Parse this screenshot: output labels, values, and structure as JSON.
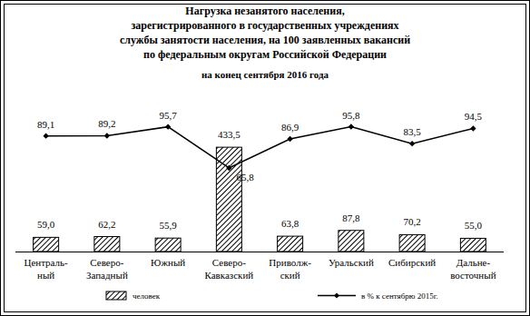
{
  "chart_data": {
    "type": "bar",
    "title": "Нагрузка незанятого населения,\nзарегистрированного в государственных учреждениях\nслужбы занятости населения, на 100 заявленных вакансий\nпо федеральным округам Российской Федерации",
    "subtitle": "на конец сентября 2016 года",
    "categories": [
      "Централь-\nный",
      "Северо-\nЗападный",
      "Южный",
      "Северо-\nКавказский",
      "Приволж-\nский",
      "Уральский",
      "Сибирский",
      "Дальне-\nвосточный"
    ],
    "series": [
      {
        "name": "человек",
        "type": "bar",
        "color": "#000000",
        "values": [
          59.0,
          62.2,
          55.9,
          433.5,
          63.8,
          87.8,
          70.2,
          55.0
        ],
        "value_labels": [
          "59,0",
          "62,2",
          "55,9",
          "433,5",
          "63,8",
          "87,8",
          "70,2",
          "55,0"
        ]
      },
      {
        "name": "в % к сентябрю 2015г.",
        "type": "line",
        "color": "#000000",
        "marker": "diamond",
        "axis": "y2",
        "values": [
          89.1,
          89.2,
          95.7,
          65.8,
          86.9,
          95.8,
          83.5,
          94.5
        ],
        "value_labels": [
          "89,1",
          "89,2",
          "95,7",
          "65,8",
          "86,9",
          "95,8",
          "83,5",
          "94,5"
        ]
      }
    ],
    "ylim": [
      0,
      600
    ],
    "y2lim": [
      5,
      110
    ],
    "tick_labels": false,
    "data_labels": true,
    "legend": "bottom"
  }
}
